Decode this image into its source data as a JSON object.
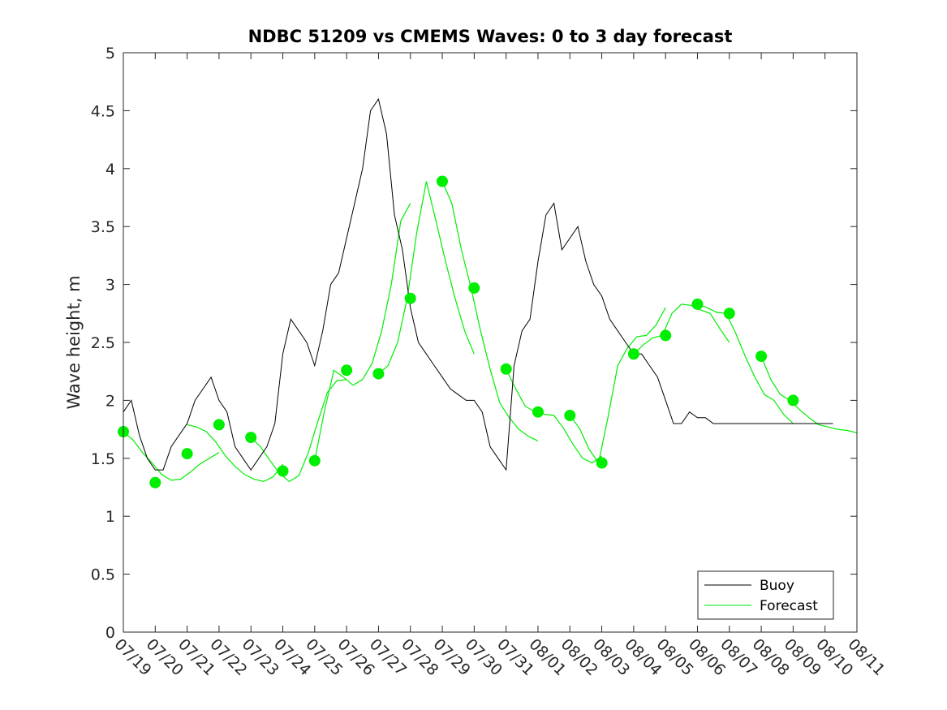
{
  "chart_data": {
    "type": "line",
    "title": "NDBC 51209 vs CMEMS Waves: 0 to 3 day forecast",
    "xlabel": "",
    "ylabel": "Wave height, m",
    "ylim": [
      0,
      5
    ],
    "yticks": [
      "0",
      "0.5",
      "1",
      "1.5",
      "2",
      "2.5",
      "3",
      "3.5",
      "4",
      "4.5",
      "5"
    ],
    "xticks": [
      "07/19",
      "07/20",
      "07/21",
      "07/22",
      "07/23",
      "07/24",
      "07/25",
      "07/26",
      "07/27",
      "07/28",
      "07/29",
      "07/30",
      "07/31",
      "08/01",
      "08/02",
      "08/03",
      "08/04",
      "08/05",
      "08/06",
      "08/07",
      "08/08",
      "08/09",
      "08/10",
      "08/11"
    ],
    "grid": false,
    "legend_position": "bottom-right",
    "legend": [
      "Buoy",
      "Forecast"
    ],
    "colors": {
      "buoy": "#000000",
      "forecast": "#00ee00"
    },
    "series": [
      {
        "name": "Buoy",
        "x": [
          0,
          0.25,
          0.5,
          0.75,
          1,
          1.25,
          1.5,
          1.75,
          2,
          2.25,
          2.5,
          2.75,
          3,
          3.25,
          3.5,
          3.75,
          4,
          4.25,
          4.5,
          4.75,
          5,
          5.25,
          5.5,
          5.75,
          6,
          6.25,
          6.5,
          6.75,
          7,
          7.25,
          7.5,
          7.75,
          8,
          8.25,
          8.5,
          8.75,
          9,
          9.25,
          9.5,
          9.75,
          10,
          10.25,
          10.5,
          10.75,
          11,
          11.25,
          11.5,
          11.75,
          12,
          12.25,
          12.5,
          12.75,
          13,
          13.25,
          13.5,
          13.75,
          14,
          14.25,
          14.5,
          14.75,
          15,
          15.25,
          15.5,
          15.75,
          16,
          16.25,
          16.5,
          16.75,
          17,
          17.25,
          17.5,
          17.75,
          18,
          18.25,
          18.5,
          18.75,
          19,
          19.25,
          19.5,
          19.75,
          20,
          20.25,
          20.5,
          20.75,
          21,
          21.25,
          21.5,
          21.75,
          22,
          22.25
        ],
        "values": [
          1.9,
          2.0,
          1.7,
          1.5,
          1.4,
          1.4,
          1.6,
          1.7,
          1.8,
          2.0,
          2.1,
          2.2,
          2.0,
          1.9,
          1.6,
          1.5,
          1.4,
          1.5,
          1.6,
          1.8,
          2.4,
          2.7,
          2.6,
          2.5,
          2.3,
          2.6,
          3.0,
          3.1,
          3.4,
          3.7,
          4.0,
          4.5,
          4.6,
          4.3,
          3.6,
          3.3,
          2.8,
          2.5,
          2.4,
          2.3,
          2.2,
          2.1,
          2.05,
          2.0,
          2.0,
          1.9,
          1.6,
          1.5,
          1.4,
          2.3,
          2.6,
          2.7,
          3.2,
          3.6,
          3.7,
          3.3,
          3.4,
          3.5,
          3.2,
          3.0,
          2.9,
          2.7,
          2.6,
          2.5,
          2.4,
          2.4,
          2.3,
          2.2,
          2.0,
          1.8,
          1.8,
          1.9,
          1.85,
          1.85,
          1.8,
          1.8,
          1.8,
          1.8,
          1.8,
          1.8,
          1.8,
          1.8,
          1.8,
          1.8,
          1.8,
          1.8,
          1.8,
          1.8,
          1.8,
          1.8
        ]
      },
      {
        "name": "Forecast",
        "markers_x": [
          0,
          1,
          2,
          3,
          4,
          5,
          6,
          7,
          8,
          9,
          10,
          11,
          12,
          13,
          14,
          15,
          16,
          17,
          18,
          19,
          20,
          21
        ],
        "markers_y": [
          1.73,
          1.29,
          1.54,
          1.79,
          1.68,
          1.39,
          1.48,
          2.26,
          2.23,
          2.88,
          3.89,
          2.97,
          2.27,
          1.9,
          1.87,
          1.46,
          2.4,
          2.56,
          2.83,
          2.75,
          2.38,
          2.0
        ],
        "runs": [
          {
            "x0": 0.0,
            "values": [
              1.73,
              1.66,
              1.55,
              1.46,
              1.36,
              1.31,
              1.32,
              1.38,
              1.45,
              1.5,
              1.55
            ]
          },
          {
            "x0": 2.0,
            "values": [
              1.79,
              1.77,
              1.73,
              1.64,
              1.52,
              1.43,
              1.36,
              1.32,
              1.3,
              1.34,
              1.45
            ]
          },
          {
            "x0": 4.0,
            "values": [
              1.68,
              1.6,
              1.48,
              1.37,
              1.3,
              1.35,
              1.55,
              1.82,
              2.07,
              2.17,
              2.18
            ]
          },
          {
            "x0": 6.0,
            "values": [
              1.48,
              1.9,
              2.26,
              2.2,
              2.13,
              2.18,
              2.32,
              2.6,
              3.0,
              3.55,
              3.7
            ]
          },
          {
            "x0": 8.0,
            "values": [
              2.23,
              2.3,
              2.5,
              2.88,
              3.45,
              3.89,
              3.55,
              3.2,
              2.88,
              2.6,
              2.4
            ]
          },
          {
            "x0": 10.0,
            "values": [
              3.89,
              3.7,
              3.3,
              2.97,
              2.6,
              2.27,
              1.98,
              1.85,
              1.75,
              1.69,
              1.65
            ]
          },
          {
            "x0": 12.0,
            "values": [
              2.27,
              2.1,
              1.95,
              1.9,
              1.88,
              1.87,
              1.76,
              1.62,
              1.5,
              1.46,
              1.52
            ]
          },
          {
            "x0": 14.0,
            "values": [
              1.87,
              1.76,
              1.58,
              1.46,
              1.86,
              2.3,
              2.45,
              2.55,
              2.56,
              2.65,
              2.8
            ]
          },
          {
            "x0": 16.0,
            "values": [
              2.4,
              2.48,
              2.54,
              2.56,
              2.75,
              2.83,
              2.82,
              2.78,
              2.75,
              2.62,
              2.5
            ]
          },
          {
            "x0": 18.0,
            "values": [
              2.83,
              2.8,
              2.76,
              2.75,
              2.58,
              2.38,
              2.2,
              2.05,
              2.0,
              1.88,
              1.8
            ]
          },
          {
            "x0": 20.0,
            "values": [
              2.38,
              2.18,
              2.05,
              2.0,
              1.92,
              1.85,
              1.79,
              1.77,
              1.75,
              1.74,
              1.72
            ]
          }
        ]
      }
    ]
  }
}
